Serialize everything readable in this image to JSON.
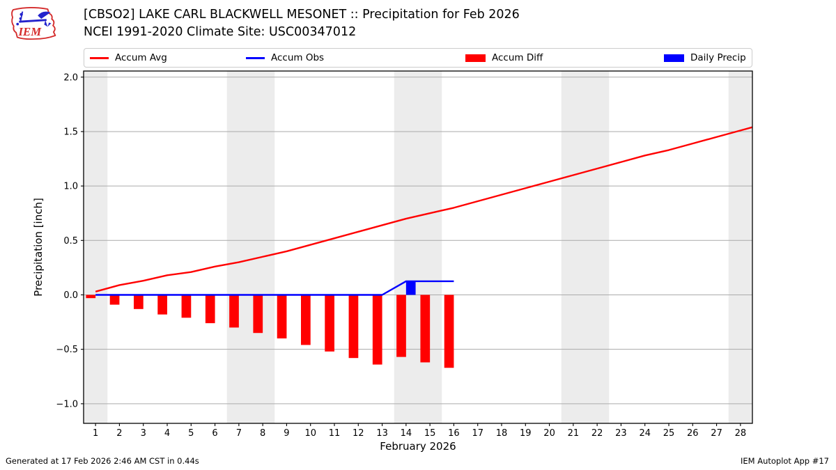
{
  "header": {
    "title_line1": "[CBSO2] LAKE CARL BLACKWELL MESONET :: Precipitation for Feb 2026",
    "title_line2": "NCEI 1991-2020 Climate Site: USC00347012",
    "logo_text": "IEM"
  },
  "legend": [
    {
      "label": "Accum Avg",
      "swatch": "line",
      "color": "#ff0000"
    },
    {
      "label": "Accum Obs",
      "swatch": "line",
      "color": "#0000ff"
    },
    {
      "label": "Accum Diff",
      "swatch": "patch",
      "color": "#ff0000"
    },
    {
      "label": "Daily Precip",
      "swatch": "patch",
      "color": "#0000ff"
    }
  ],
  "footer": {
    "left": "Generated at 17 Feb 2026 2:46 AM CST in 0.44s",
    "right": "IEM Autoplot App #17"
  },
  "colors": {
    "accum_avg": "#ff0000",
    "accum_obs": "#0000ff",
    "accum_diff": "#ff0000",
    "daily_precip": "#0000ff",
    "weekend_band": "#ececec",
    "grid": "#aaaaaa",
    "spine": "#000000",
    "logo_red": "#d42b2b",
    "logo_blue": "#2323cc"
  },
  "chart_data": {
    "type": "line+bar",
    "xlabel": "February 2026",
    "ylabel": "Precipitation [inch]",
    "xlim": [
      0.5,
      28.5
    ],
    "ylim": [
      -1.18,
      2.056
    ],
    "x_ticks": [
      1,
      2,
      3,
      4,
      5,
      6,
      7,
      8,
      9,
      10,
      11,
      12,
      13,
      14,
      15,
      16,
      17,
      18,
      19,
      20,
      21,
      22,
      23,
      24,
      25,
      26,
      27,
      28
    ],
    "y_ticks": [
      -1.0,
      -0.5,
      0.0,
      0.5,
      1.0,
      1.5,
      2.0
    ],
    "y_tick_labels": [
      "−1.0",
      "−0.5",
      "0.0",
      "0.5",
      "1.0",
      "1.5",
      "2.0"
    ],
    "grid": true,
    "legend_position": "top",
    "weekend_bands": [
      [
        0.5,
        1.5
      ],
      [
        6.5,
        8.5
      ],
      [
        13.5,
        15.5
      ],
      [
        20.5,
        22.5
      ],
      [
        27.5,
        28.5
      ]
    ],
    "series": [
      {
        "name": "Accum Avg",
        "type": "line",
        "color": "#ff0000",
        "x": [
          1,
          2,
          3,
          4,
          5,
          6,
          7,
          8,
          9,
          10,
          11,
          12,
          13,
          14,
          15,
          16,
          17,
          18,
          19,
          20,
          21,
          22,
          23,
          24,
          25,
          26,
          27,
          28,
          28.5
        ],
        "y": [
          0.03,
          0.09,
          0.13,
          0.18,
          0.21,
          0.26,
          0.3,
          0.35,
          0.4,
          0.46,
          0.52,
          0.58,
          0.64,
          0.7,
          0.75,
          0.8,
          0.86,
          0.92,
          0.98,
          1.04,
          1.1,
          1.16,
          1.22,
          1.28,
          1.33,
          1.39,
          1.45,
          1.51,
          1.54
        ]
      },
      {
        "name": "Accum Obs",
        "type": "line",
        "color": "#0000ff",
        "x": [
          1,
          13,
          14,
          16
        ],
        "y": [
          0.0,
          0.0,
          0.125,
          0.125
        ]
      },
      {
        "name": "Accum Diff",
        "type": "bar",
        "color": "#ff0000",
        "bar_side": "left",
        "x": [
          1,
          2,
          3,
          4,
          5,
          6,
          7,
          8,
          9,
          10,
          11,
          12,
          13,
          14,
          15,
          16
        ],
        "y": [
          -0.03,
          -0.09,
          -0.13,
          -0.18,
          -0.21,
          -0.26,
          -0.3,
          -0.35,
          -0.4,
          -0.46,
          -0.52,
          -0.58,
          -0.64,
          -0.57,
          -0.62,
          -0.67
        ]
      },
      {
        "name": "Daily Precip",
        "type": "bar",
        "color": "#0000ff",
        "bar_side": "right",
        "x": [
          14
        ],
        "y": [
          0.125
        ]
      }
    ]
  }
}
